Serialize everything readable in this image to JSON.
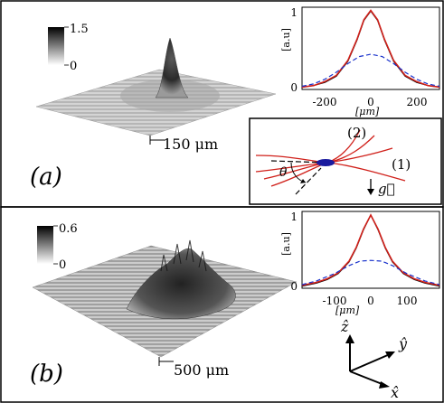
{
  "panel_a": {
    "label": "(a)",
    "colorbar": {
      "max": "1.5",
      "min": "0"
    },
    "scale_bar": "150 μm",
    "profile": {
      "ylabel": "[a.u]",
      "xlabel": "[μm]",
      "yticks": [
        "0",
        "1"
      ],
      "xticks": [
        "-200",
        "0",
        "200"
      ],
      "xlim": [
        -300,
        300
      ],
      "ylim": [
        0,
        1.05
      ]
    },
    "inset": {
      "beam_labels": [
        "(2)",
        "(1)"
      ],
      "angle_label": "θ",
      "gravity_label": "g⃗"
    }
  },
  "panel_b": {
    "label": "(b)",
    "colorbar": {
      "max": "0.6",
      "min": "0"
    },
    "scale_bar": "500 μm",
    "profile": {
      "ylabel": "[a.u]",
      "xlabel": "[μm]",
      "yticks": [
        "0",
        "1"
      ],
      "xticks": [
        "-100",
        "0",
        "100"
      ],
      "xlim": [
        -190,
        190
      ],
      "ylim": [
        0,
        1.05
      ]
    },
    "axes": {
      "z": "ẑ",
      "y": "ŷ",
      "x": "x̂"
    }
  },
  "chart_data": [
    {
      "type": "line",
      "panel": "a",
      "xlabel": "[μm]",
      "ylabel": "[a.u]",
      "xlim": [
        -300,
        300
      ],
      "ylim": [
        0,
        1.05
      ],
      "series": [
        {
          "color": "#000000",
          "style": "solid",
          "x": [
            -300,
            -250,
            -200,
            -150,
            -100,
            -60,
            -30,
            0,
            30,
            60,
            100,
            150,
            200,
            250,
            300
          ],
          "y": [
            0.03,
            0.05,
            0.09,
            0.17,
            0.36,
            0.63,
            0.88,
            1.0,
            0.88,
            0.63,
            0.36,
            0.17,
            0.09,
            0.05,
            0.03
          ]
        },
        {
          "color": "#d0201a",
          "style": "solid",
          "x": [
            -300,
            -250,
            -200,
            -150,
            -100,
            -60,
            -30,
            0,
            30,
            60,
            100,
            150,
            200,
            250,
            300
          ],
          "y": [
            0.03,
            0.05,
            0.1,
            0.18,
            0.37,
            0.64,
            0.89,
            1.01,
            0.89,
            0.64,
            0.37,
            0.18,
            0.1,
            0.05,
            0.03
          ]
        },
        {
          "color": "#1a33cc",
          "style": "dashed",
          "x": [
            -300,
            -250,
            -200,
            -150,
            -100,
            -50,
            0,
            50,
            100,
            150,
            200,
            250,
            300
          ],
          "y": [
            0.04,
            0.07,
            0.13,
            0.22,
            0.33,
            0.42,
            0.45,
            0.42,
            0.33,
            0.22,
            0.13,
            0.07,
            0.04
          ]
        }
      ]
    },
    {
      "type": "line",
      "panel": "b",
      "xlabel": "[μm]",
      "ylabel": "[a.u]",
      "xlim": [
        -190,
        190
      ],
      "ylim": [
        0,
        1.05
      ],
      "series": [
        {
          "color": "#000000",
          "style": "solid",
          "x": [
            -190,
            -150,
            -120,
            -90,
            -60,
            -40,
            -20,
            0,
            20,
            40,
            60,
            90,
            120,
            150,
            190
          ],
          "y": [
            0.03,
            0.07,
            0.12,
            0.2,
            0.36,
            0.55,
            0.8,
            1.0,
            0.8,
            0.55,
            0.36,
            0.2,
            0.12,
            0.07,
            0.03
          ]
        },
        {
          "color": "#d0201a",
          "style": "solid",
          "x": [
            -190,
            -150,
            -120,
            -90,
            -60,
            -40,
            -20,
            0,
            20,
            40,
            60,
            90,
            120,
            150,
            190
          ],
          "y": [
            0.04,
            0.08,
            0.13,
            0.21,
            0.37,
            0.56,
            0.81,
            1.0,
            0.81,
            0.56,
            0.37,
            0.21,
            0.13,
            0.08,
            0.04
          ]
        },
        {
          "color": "#1a33cc",
          "style": "dashed",
          "x": [
            -190,
            -150,
            -100,
            -60,
            -30,
            0,
            30,
            60,
            100,
            150,
            190
          ],
          "y": [
            0.05,
            0.1,
            0.2,
            0.31,
            0.37,
            0.38,
            0.37,
            0.31,
            0.2,
            0.1,
            0.05
          ]
        }
      ]
    }
  ]
}
